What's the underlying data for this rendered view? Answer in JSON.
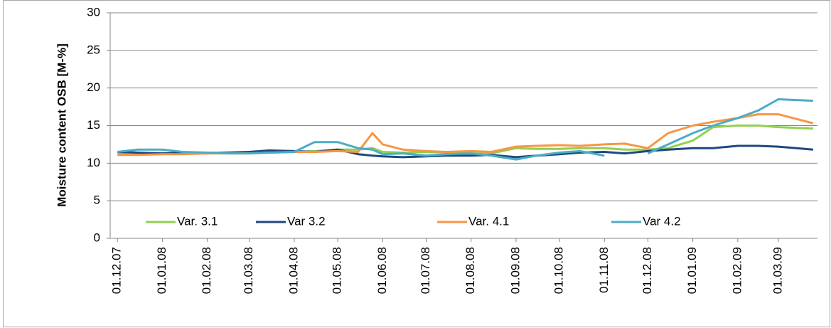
{
  "chart_data": {
    "type": "line",
    "y_label": "Moisture content OSB [M-%]",
    "x": [
      "01.12.07",
      "15.12.07",
      "01.01.08",
      "15.01.08",
      "01.02.08",
      "15.02.08",
      "01.03.08",
      "15.03.08",
      "01.04.08",
      "15.04.08",
      "01.05.08",
      "15.05.08",
      "25.05.08",
      "01.06.08",
      "15.06.08",
      "01.07.08",
      "15.07.08",
      "01.08.08",
      "15.08.08",
      "01.09.08",
      "15.09.08",
      "01.10.08",
      "15.10.08",
      "01.11.08",
      "15.11.08",
      "01.12.08",
      "15.12.08",
      "01.01.09",
      "15.01.09",
      "01.02.09",
      "15.02.09",
      "01.03.09",
      "25.03.09"
    ],
    "series": [
      {
        "name": "Var. 3.1",
        "color": "#92d050",
        "values": [
          11.3,
          11.3,
          11.3,
          11.4,
          11.4,
          11.4,
          11.4,
          11.5,
          11.5,
          11.6,
          11.8,
          11.8,
          12.0,
          11.5,
          11.4,
          11.5,
          11.4,
          11.3,
          11.3,
          12.0,
          11.9,
          11.9,
          12.0,
          12.0,
          11.8,
          11.8,
          12.0,
          13.0,
          14.8,
          15.0,
          15.0,
          14.8,
          14.6
        ]
      },
      {
        "name": "Var 3.2",
        "color": "#1f497d",
        "values": [
          11.5,
          11.4,
          11.3,
          11.4,
          11.3,
          11.4,
          11.5,
          11.7,
          11.6,
          11.5,
          11.8,
          11.2,
          11.0,
          10.9,
          10.8,
          10.9,
          11.0,
          11.0,
          11.1,
          10.8,
          11.0,
          11.2,
          11.4,
          11.5,
          11.3,
          11.6,
          11.8,
          12.0,
          12.0,
          12.3,
          12.3,
          12.2,
          11.8
        ]
      },
      {
        "name": "Var. 4.1",
        "color": "#f79646",
        "values": [
          11.1,
          11.1,
          11.2,
          11.2,
          11.3,
          11.3,
          11.3,
          11.4,
          11.5,
          11.5,
          11.6,
          11.5,
          14.0,
          12.5,
          11.8,
          11.6,
          11.5,
          11.6,
          11.5,
          12.2,
          12.3,
          12.4,
          12.3,
          12.5,
          12.6,
          12.0,
          14.0,
          15.0,
          15.5,
          16.0,
          16.5,
          16.5,
          15.3
        ]
      },
      {
        "name": "Var 4.2",
        "color": "#4bacc6",
        "values": [
          11.5,
          11.8,
          11.8,
          11.5,
          11.4,
          11.3,
          11.3,
          11.4,
          11.5,
          12.8,
          12.8,
          12.0,
          11.8,
          11.2,
          11.3,
          11.0,
          11.2,
          11.3,
          11.0,
          10.5,
          11.0,
          11.4,
          11.6,
          11.0,
          null,
          11.3,
          12.5,
          14.0,
          15.0,
          16.0,
          17.0,
          18.5,
          18.3
        ]
      }
    ],
    "xlim": [
      "26.11.07",
      "28.03.09"
    ],
    "xticks": [
      "01.12.07",
      "01.01.08",
      "01.02.08",
      "01.03.08",
      "01.04.08",
      "01.05.08",
      "01.06.08",
      "01.07.08",
      "01.08.08",
      "01.09.08",
      "01.10.08",
      "01.11.08",
      "01.12.08",
      "01.01.09",
      "01.02.09",
      "01.03.09"
    ],
    "ylim": [
      0,
      30
    ],
    "yticks": [
      0,
      5,
      10,
      15,
      20,
      25,
      30
    ],
    "grid": true,
    "legend": "bottom"
  }
}
